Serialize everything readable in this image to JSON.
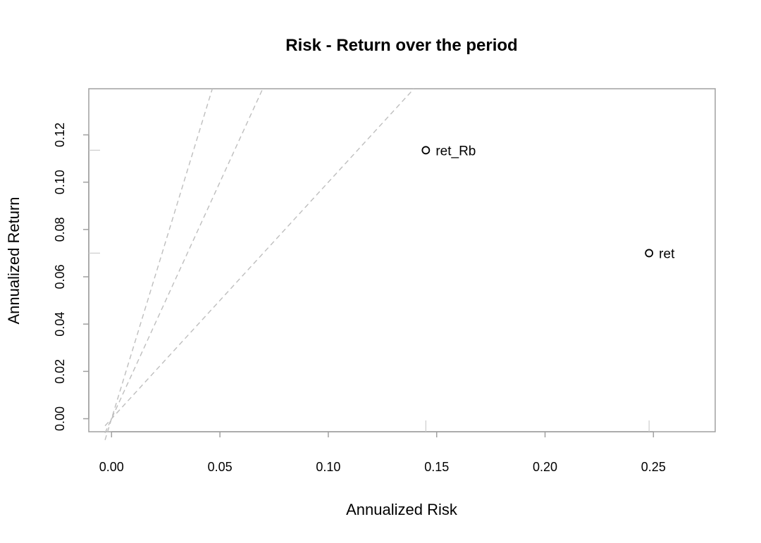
{
  "chart_data": {
    "type": "scatter",
    "title": "Risk - Return over the period",
    "xlabel": "Annualized Risk",
    "ylabel": "Annualized Return",
    "xlim": [
      -0.0105,
      0.2785
    ],
    "ylim": [
      -0.0055,
      0.1395
    ],
    "x_ticks": [
      0.0,
      0.05,
      0.1,
      0.15,
      0.2,
      0.25
    ],
    "x_tick_labels": [
      "0.00",
      "0.05",
      "0.10",
      "0.15",
      "0.20",
      "0.25"
    ],
    "y_ticks": [
      0.0,
      0.02,
      0.04,
      0.06,
      0.08,
      0.1,
      0.12
    ],
    "y_tick_labels": [
      "0.00",
      "0.02",
      "0.04",
      "0.06",
      "0.08",
      "0.10",
      "0.12"
    ],
    "points": [
      {
        "label": "ret_Rb",
        "x": 0.145,
        "y": 0.1135
      },
      {
        "label": "ret",
        "x": 0.248,
        "y": 0.07
      }
    ],
    "reference_lines": [
      {
        "style": "dashed",
        "color": "#bebebe",
        "slope": 3.0
      },
      {
        "style": "dashed",
        "color": "#bebebe",
        "slope": 2.0
      },
      {
        "style": "dashed",
        "color": "#bebebe",
        "slope": 1.0
      }
    ],
    "grid": false,
    "legend": "none",
    "colors": {
      "box": "#a0a0a0",
      "refline": "#bebebe",
      "point": "#000000"
    }
  }
}
